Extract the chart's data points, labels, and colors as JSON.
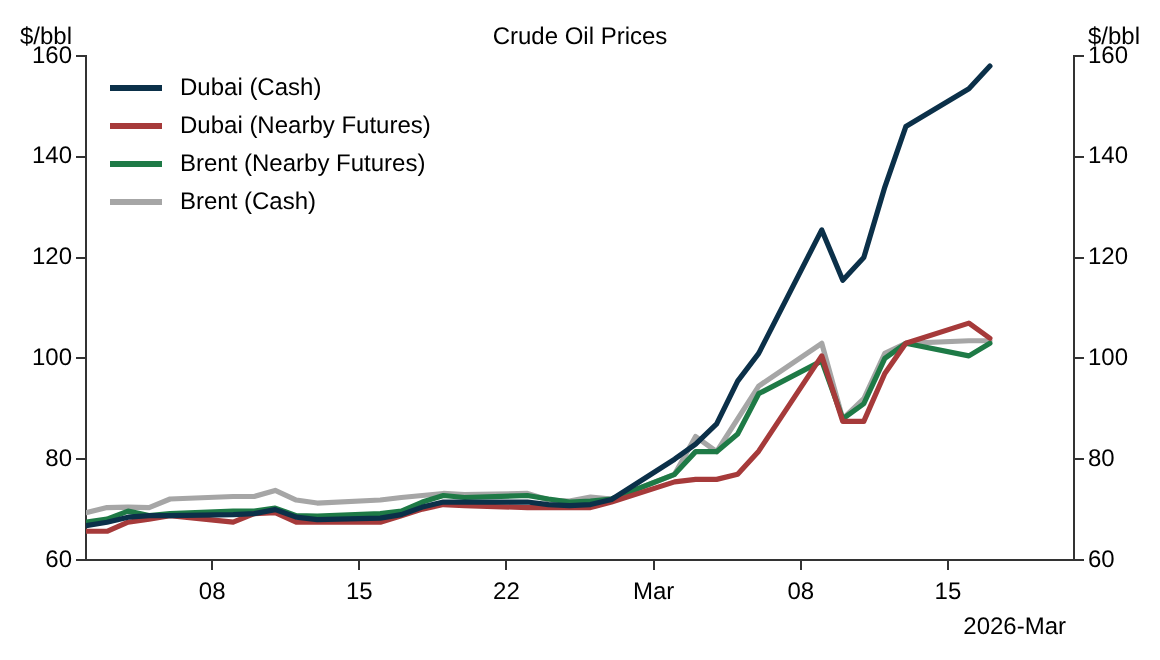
{
  "chart_data": {
    "type": "line",
    "title": "Crude Oil Prices",
    "ylabel": "$/bbl",
    "y2label": "$/bbl",
    "xlabel": "2026-Mar",
    "x": [
      "2026-02-02",
      "2026-02-03",
      "2026-02-04",
      "2026-02-05",
      "2026-02-06",
      "2026-02-09",
      "2026-02-10",
      "2026-02-11",
      "2026-02-12",
      "2026-02-13",
      "2026-02-16",
      "2026-02-17",
      "2026-02-18",
      "2026-02-19",
      "2026-02-20",
      "2026-02-23",
      "2026-02-24",
      "2026-02-25",
      "2026-02-26",
      "2026-02-27",
      "2026-03-02",
      "2026-03-03",
      "2026-03-04",
      "2026-03-05",
      "2026-03-06",
      "2026-03-09",
      "2026-03-10",
      "2026-03-11",
      "2026-03-12",
      "2026-03-13",
      "2026-03-16",
      "2026-03-17"
    ],
    "series": [
      {
        "name": "Dubai (Cash)",
        "color": "#0b3049",
        "values": [
          66.8,
          67.5,
          68.5,
          68.8,
          68.8,
          69,
          69.2,
          70,
          68.5,
          68,
          68.3,
          69,
          70.5,
          71.5,
          71.5,
          71.5,
          71,
          70.8,
          71,
          72,
          80,
          83,
          87,
          95.5,
          101,
          125.5,
          115.5,
          120,
          134,
          146,
          153.5,
          158
        ]
      },
      {
        "name": "Dubai (Nearby Futures)",
        "color": "#a63a3a",
        "values": [
          65.7,
          65.7,
          67.5,
          68.1,
          68.8,
          67.5,
          69.2,
          69.4,
          67.5,
          67.5,
          67.5,
          68.8,
          70.1,
          71,
          70.8,
          70.4,
          70.4,
          70.4,
          70.4,
          71.5,
          75.5,
          76,
          76,
          77,
          81.6,
          100.5,
          87.5,
          87.5,
          97,
          103,
          107,
          104
        ]
      },
      {
        "name": "Brent (Nearby Futures)",
        "color": "#1e7a46",
        "values": [
          67.5,
          68.1,
          69.7,
          68.8,
          69.2,
          69.7,
          69.7,
          70.3,
          68.8,
          68.7,
          69.2,
          69.7,
          71.5,
          72.8,
          72.4,
          72.8,
          72.1,
          71.5,
          71.7,
          72.1,
          77,
          81.5,
          81.5,
          85,
          93,
          99.5,
          88,
          91,
          100,
          103,
          100.5,
          103
        ]
      },
      {
        "name": "Brent (Cash)",
        "color": "#a6a6a6",
        "values": [
          69.4,
          70.4,
          70.5,
          70.4,
          72.1,
          72.6,
          72.6,
          73.8,
          71.9,
          71.3,
          71.9,
          72.4,
          72.8,
          73.2,
          73,
          73.2,
          71.9,
          71.7,
          72.5,
          72.1,
          77,
          84.5,
          81.5,
          88,
          94.5,
          103,
          88,
          92,
          101,
          103,
          103.5,
          103.5
        ]
      }
    ],
    "xlim": [
      "2026-02-02",
      "2026-03-21"
    ],
    "xticks": [
      {
        "value": "2026-02-08",
        "label": "08"
      },
      {
        "value": "2026-02-15",
        "label": "15"
      },
      {
        "value": "2026-02-22",
        "label": "22"
      },
      {
        "value": "2026-03-01",
        "label": "Mar"
      },
      {
        "value": "2026-03-08",
        "label": "08"
      },
      {
        "value": "2026-03-15",
        "label": "15"
      }
    ],
    "ylim": [
      60,
      160
    ],
    "yticks": [
      60,
      80,
      100,
      120,
      140,
      160
    ],
    "y2lim": [
      60,
      160
    ],
    "y2ticks": [
      60,
      80,
      100,
      120,
      140,
      160
    ],
    "grid": false,
    "legend": "top left",
    "marker": "none",
    "line_style": "solid"
  }
}
